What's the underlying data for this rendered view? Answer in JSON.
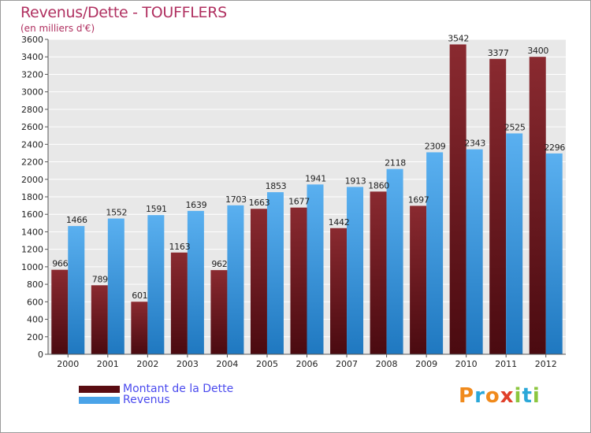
{
  "colors": {
    "debt": "#7a1e24",
    "debt_dark": "#4a0a10",
    "revenue": "#4aa3e8",
    "revenue_dark": "#1f78c0",
    "title": "#b03060",
    "legend_text": "#4a4aee",
    "background": "#e8e8e8",
    "grid": "#ffffff"
  },
  "chart_data": {
    "type": "bar",
    "title": "Revenus/Dette - TOUFFLERS",
    "subtitle": "(en milliers d'€)",
    "categories": [
      "2000",
      "2001",
      "2002",
      "2003",
      "2004",
      "2005",
      "2006",
      "2007",
      "2008",
      "2009",
      "2010",
      "2011",
      "2012"
    ],
    "series": [
      {
        "name": "Montant de la Dette",
        "values": [
          966,
          789,
          601,
          1163,
          962,
          1663,
          1677,
          1442,
          1860,
          1697,
          3542,
          3377,
          3400
        ]
      },
      {
        "name": "Revenus",
        "values": [
          1466,
          1552,
          1591,
          1639,
          1703,
          1853,
          1941,
          1913,
          2118,
          2309,
          2343,
          2525,
          2296
        ]
      }
    ],
    "yticks": [
      "0",
      "200",
      "400",
      "600",
      "800",
      "1000",
      "1200",
      "1400",
      "1600",
      "1800",
      "2000",
      "2200",
      "2400",
      "2600",
      "2800",
      "3000",
      "3200",
      "3400",
      "3600"
    ],
    "ylim": [
      0,
      3600
    ],
    "grid": true,
    "legend_position": "bottom-left"
  },
  "logo": {
    "text": "Proxiti",
    "letters": [
      {
        "char": "P",
        "color": "#f08a1c"
      },
      {
        "char": "r",
        "color": "#2aa7d8"
      },
      {
        "char": "o",
        "color": "#f08a1c"
      },
      {
        "char": "x",
        "color": "#e0402a"
      },
      {
        "char": "i",
        "color": "#8cc63f"
      },
      {
        "char": "t",
        "color": "#2aa7d8"
      },
      {
        "char": "i",
        "color": "#8cc63f"
      }
    ]
  }
}
